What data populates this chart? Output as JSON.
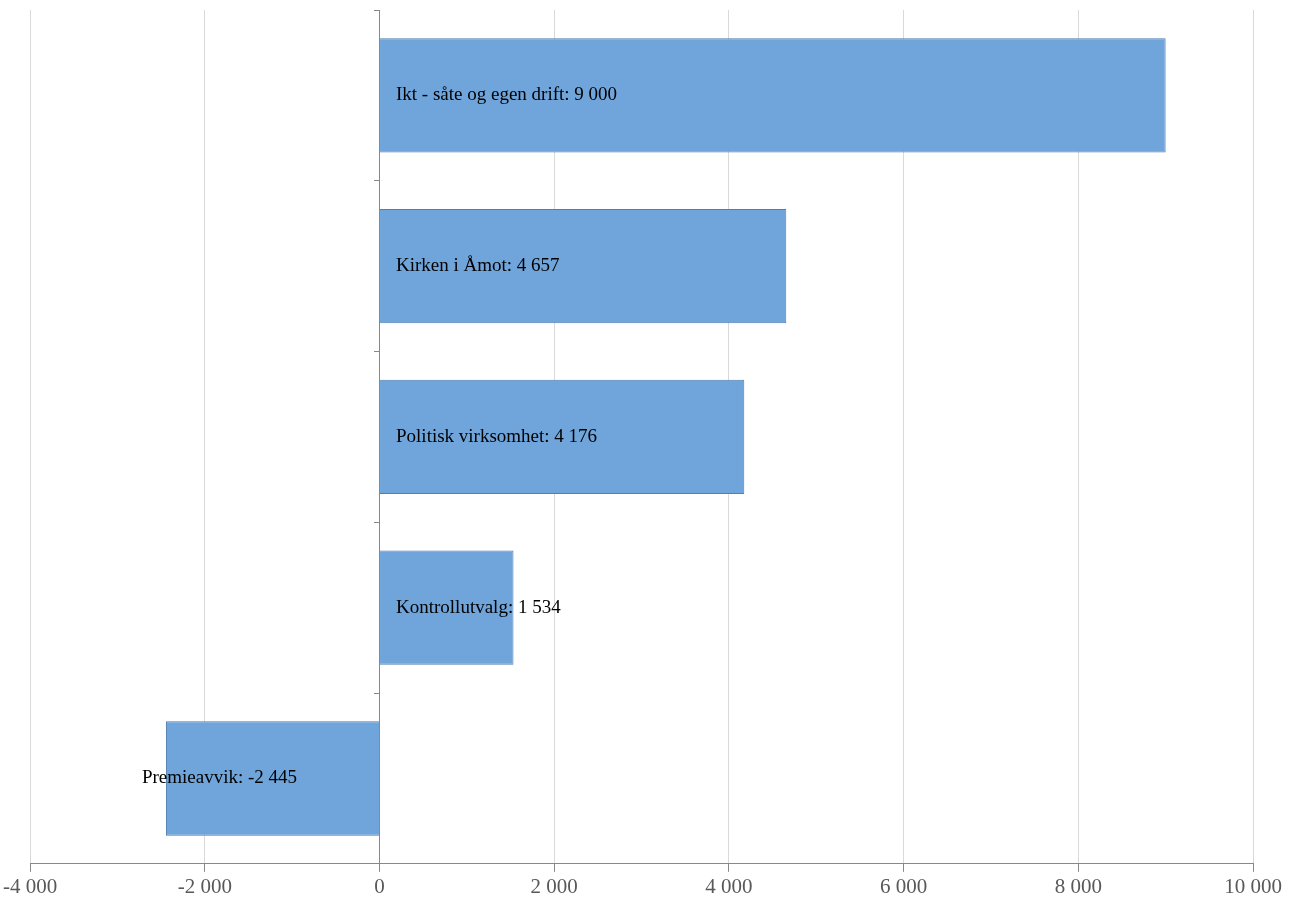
{
  "chart_data": {
    "type": "bar",
    "orientation": "horizontal",
    "categories": [
      null,
      null,
      null,
      null,
      null
    ],
    "values": [
      9000,
      4657,
      4176,
      1534,
      -2445
    ],
    "value_labels": [
      "Ikt - såte og egen drift: 9 000",
      "Kirken i Åmot: 4 657",
      "Politisk virksomhet: 4 176",
      "Kontrollutvalg: 1 534",
      "Premieavvik: -2 445"
    ],
    "color": "#6fa5db",
    "xlim": [
      -4000,
      10000
    ],
    "xticks": [
      {
        "value": -4000,
        "label": "-4 000"
      },
      {
        "value": -2000,
        "label": "-2 000"
      },
      0,
      {
        "value": 2000,
        "label": "2 000"
      },
      {
        "value": 4000,
        "label": "4 000"
      },
      {
        "value": 6000,
        "label": "6 000"
      },
      {
        "value": 8000,
        "label": "8 000"
      },
      {
        "value": 10000,
        "label": "10 000"
      }
    ],
    "grid": "x",
    "tick_labels": "x"
  }
}
